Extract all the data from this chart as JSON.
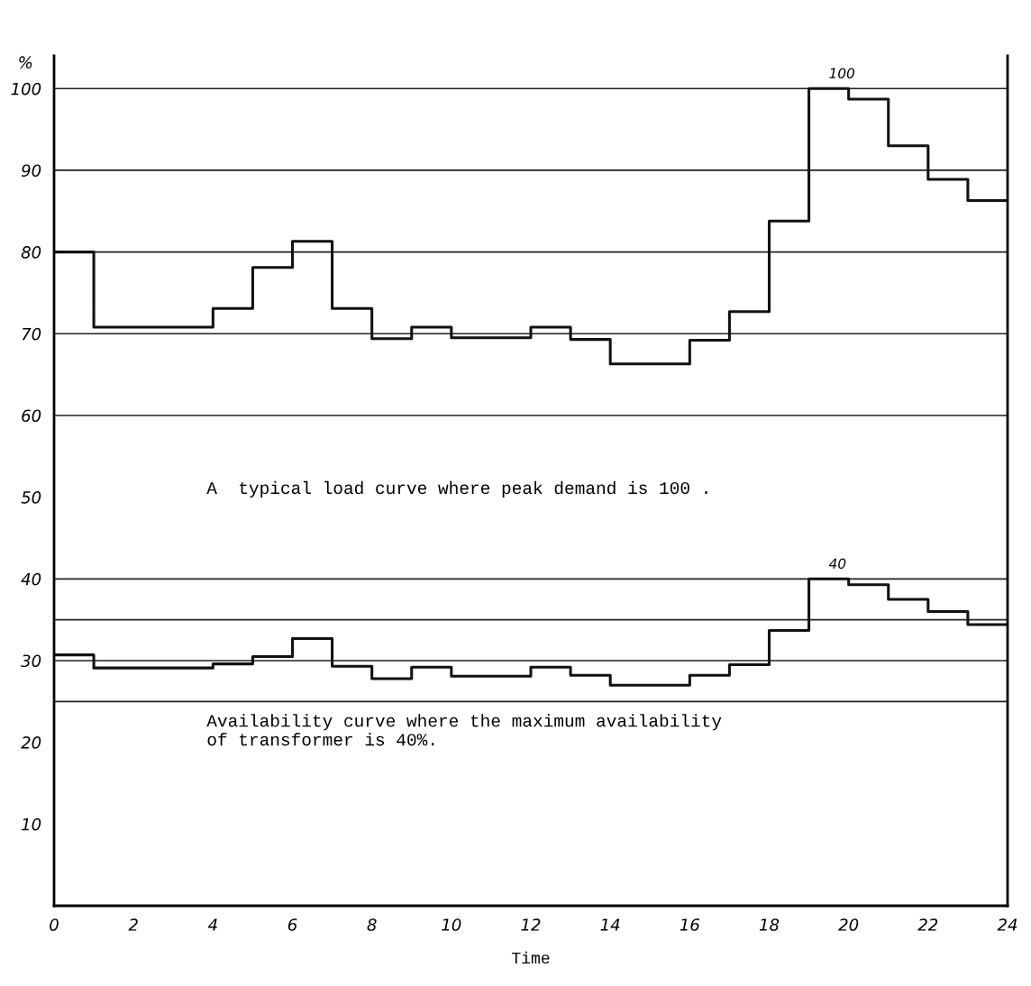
{
  "chart_data": {
    "type": "step",
    "ylabel": "%",
    "xlabel": "Time",
    "x": [
      0,
      1,
      2,
      3,
      4,
      5,
      6,
      7,
      8,
      9,
      10,
      11,
      12,
      13,
      14,
      15,
      16,
      17,
      18,
      19,
      20,
      21,
      22,
      23,
      24
    ],
    "series": [
      {
        "color": "#111111",
        "values": [
          80,
          70.8,
          70.8,
          70.8,
          73.1,
          78.1,
          81.3,
          73.1,
          69.4,
          70.8,
          69.5,
          69.5,
          70.8,
          69.3,
          66.3,
          66.3,
          69.2,
          72.7,
          83.8,
          100,
          98.7,
          93.0,
          88.9,
          86.3,
          86.3
        ]
      },
      {
        "color": "#111111",
        "values": [
          30.7,
          29.1,
          29.1,
          29.1,
          29.6,
          30.5,
          32.7,
          29.3,
          27.8,
          29.2,
          28.1,
          28.1,
          29.2,
          28.2,
          27.0,
          27.0,
          28.2,
          29.5,
          33.7,
          40,
          39.3,
          37.5,
          36.0,
          34.4,
          34.4
        ]
      }
    ],
    "xlim": [
      0,
      24
    ],
    "xticks": [
      0,
      2,
      4,
      6,
      8,
      10,
      12,
      14,
      16,
      18,
      20,
      22,
      24
    ],
    "ylim": [
      0,
      104
    ],
    "yticks": [
      10,
      20,
      30,
      40,
      50,
      60,
      70,
      80,
      90,
      100
    ],
    "ref_lines": [
      {
        "axis": "y",
        "value": 100,
        "color": "#222222"
      },
      {
        "axis": "y",
        "value": 90,
        "color": "#222222"
      },
      {
        "axis": "y",
        "value": 80,
        "color": "#222222"
      },
      {
        "axis": "y",
        "value": 70,
        "color": "#222222"
      },
      {
        "axis": "y",
        "value": 60,
        "color": "#222222"
      },
      {
        "axis": "y",
        "value": 40,
        "color": "#222222"
      },
      {
        "axis": "y",
        "value": 35,
        "color": "#222222"
      },
      {
        "axis": "y",
        "value": 30,
        "color": "#222222"
      },
      {
        "axis": "y",
        "value": 25,
        "color": "#222222"
      }
    ],
    "annotations": [
      {
        "text": "100",
        "x": 19.5,
        "y": 100
      },
      {
        "text": "40",
        "x": 19.5,
        "y": 40
      },
      "A  typical load curve where peak demand is 100 .",
      "Availability curve where the maximum availability\nof transformer is 40%."
    ],
    "grid": false,
    "legend": false
  }
}
